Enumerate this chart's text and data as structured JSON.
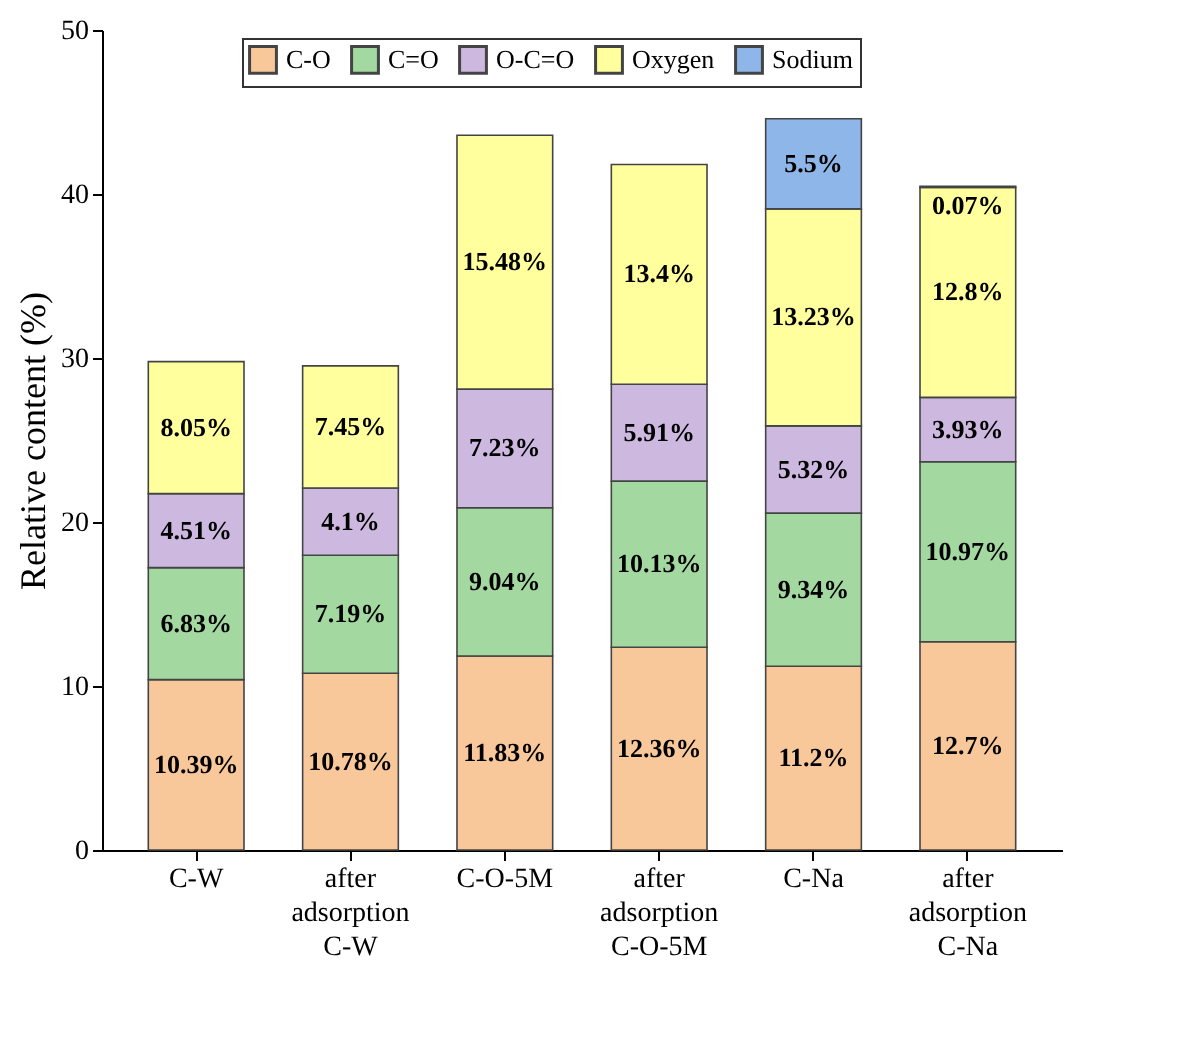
{
  "chart_data": {
    "type": "bar",
    "stacked": true,
    "ylabel": "Relative content (%)",
    "categories": [
      "C-W",
      "after adsorption C-W",
      "C-O-5M",
      "after adsorption C-O-5M",
      "C-Na",
      "after adsorption C-Na"
    ],
    "ylim": [
      0,
      50
    ],
    "yticks": [
      0,
      10,
      20,
      30,
      40,
      50
    ],
    "legend": "top",
    "grid": false,
    "series": [
      {
        "name": "C-O",
        "color": "#f9c89a",
        "values": [
          10.39,
          10.78,
          11.83,
          12.36,
          11.2,
          12.7
        ],
        "value_labels": [
          "10.39%",
          "10.78%",
          "11.83%",
          "12.36%",
          "11.2%",
          "12.7%"
        ]
      },
      {
        "name": "C=O",
        "color": "#a3d9a0",
        "values": [
          6.83,
          7.19,
          9.04,
          10.13,
          9.34,
          10.97
        ],
        "value_labels": [
          "6.83%",
          "7.19%",
          "9.04%",
          "10.13%",
          "9.34%",
          "10.97%"
        ]
      },
      {
        "name": "O-C=O",
        "color": "#cdb8e0",
        "values": [
          4.51,
          4.1,
          7.23,
          5.91,
          5.32,
          3.93
        ],
        "value_labels": [
          "4.51%",
          "4.1%",
          "7.23%",
          "5.91%",
          "5.32%",
          "3.93%"
        ]
      },
      {
        "name": "Oxygen",
        "color": "#ffff9e",
        "values": [
          8.05,
          7.45,
          15.48,
          13.4,
          13.23,
          12.8
        ],
        "value_labels": [
          "8.05%",
          "7.45%",
          "15.48%",
          "13.4%",
          "13.23%",
          "12.8%"
        ]
      },
      {
        "name": "Sodium",
        "color": "#8fb6e8",
        "values": [
          null,
          null,
          null,
          null,
          5.5,
          0.07
        ],
        "value_labels": [
          null,
          null,
          null,
          null,
          "5.5%",
          "0.07%"
        ]
      }
    ]
  }
}
